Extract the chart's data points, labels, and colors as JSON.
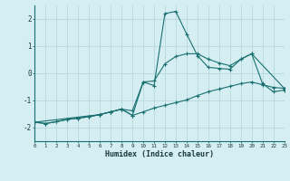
{
  "xlabel": "Humidex (Indice chaleur)",
  "background_color": "#d4eef2",
  "grid_color": "#b8d8de",
  "line_color": "#1a7070",
  "xlim": [
    0,
    23
  ],
  "ylim": [
    -2.5,
    2.5
  ],
  "xtick_labels": [
    "0",
    "1",
    "2",
    "3",
    "4",
    "5",
    "6",
    "7",
    "8",
    "9",
    "10",
    "11",
    "12",
    "13",
    "14",
    "15",
    "16",
    "17",
    "18",
    "19",
    "20",
    "21",
    "22",
    "23"
  ],
  "ytick_values": [
    -2,
    -1,
    0,
    1,
    2
  ],
  "line1_x": [
    0,
    1,
    2,
    3,
    4,
    5,
    6,
    7,
    8,
    9,
    10,
    11,
    12,
    13,
    14,
    15,
    16,
    17,
    18,
    19,
    20,
    21,
    22,
    23
  ],
  "line1_y": [
    -1.8,
    -1.85,
    -1.78,
    -1.7,
    -1.65,
    -1.6,
    -1.52,
    -1.42,
    -1.32,
    -1.38,
    -0.32,
    -0.45,
    2.2,
    2.28,
    1.45,
    0.65,
    0.22,
    0.18,
    0.15,
    0.52,
    0.72,
    -0.38,
    -0.68,
    -0.62
  ],
  "line2_x": [
    0,
    1,
    2,
    3,
    4,
    5,
    6,
    7,
    8,
    9,
    10,
    11,
    12,
    13,
    14,
    15,
    16,
    17,
    18,
    19,
    20,
    21,
    22,
    23
  ],
  "line2_y": [
    -1.8,
    -1.85,
    -1.78,
    -1.7,
    -1.65,
    -1.6,
    -1.52,
    -1.42,
    -1.32,
    -1.55,
    -1.42,
    -1.28,
    -1.18,
    -1.08,
    -0.98,
    -0.82,
    -0.68,
    -0.58,
    -0.48,
    -0.38,
    -0.32,
    -0.42,
    -0.52,
    -0.55
  ],
  "line3_x": [
    0,
    6,
    7,
    8,
    9,
    10,
    11,
    12,
    13,
    14,
    15,
    16,
    17,
    18,
    19,
    20,
    23
  ],
  "line3_y": [
    -1.8,
    -1.52,
    -1.42,
    -1.32,
    -1.55,
    -0.32,
    -0.28,
    0.35,
    0.62,
    0.72,
    0.72,
    0.52,
    0.38,
    0.28,
    0.52,
    0.72,
    -0.55
  ]
}
